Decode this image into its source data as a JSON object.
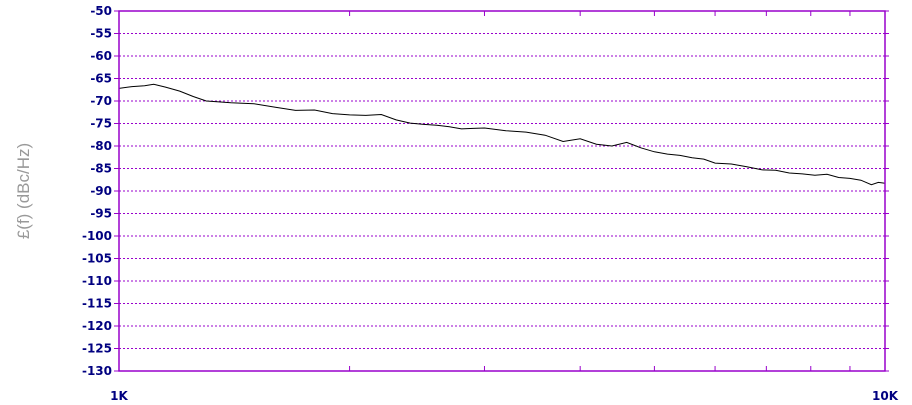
{
  "chart_data": {
    "type": "line",
    "title": "",
    "xlabel": "",
    "ylabel": "£(f) (dBc/Hz)",
    "x_scale": "log",
    "xlim": [
      1000,
      10000
    ],
    "ylim": [
      -130,
      -50
    ],
    "grid": true,
    "x_tick_labels": [
      {
        "value": 1000,
        "label": "1K"
      },
      {
        "value": 10000,
        "label": "10K"
      }
    ],
    "y_tick_labels": [
      {
        "value": -50,
        "label": "-50"
      },
      {
        "value": -55,
        "label": "-55"
      },
      {
        "value": -60,
        "label": "-60"
      },
      {
        "value": -65,
        "label": "-65"
      },
      {
        "value": -70,
        "label": "-70"
      },
      {
        "value": -75,
        "label": "-75"
      },
      {
        "value": -80,
        "label": "-80"
      },
      {
        "value": -85,
        "label": "-85"
      },
      {
        "value": -90,
        "label": "-90"
      },
      {
        "value": -95,
        "label": "-95"
      },
      {
        "value": -100,
        "label": "-100"
      },
      {
        "value": -105,
        "label": "-105"
      },
      {
        "value": -110,
        "label": "-110"
      },
      {
        "value": -115,
        "label": "-115"
      },
      {
        "value": -120,
        "label": "-120"
      },
      {
        "value": -125,
        "label": "-125"
      },
      {
        "value": -130,
        "label": "-130"
      }
    ],
    "series": [
      {
        "x": [
          1000,
          1040,
          1080,
          1110,
          1150,
          1200,
          1250,
          1300,
          1350,
          1400,
          1500,
          1600,
          1700,
          1800,
          1900,
          2000,
          2100,
          2200,
          2300,
          2400,
          2500,
          2600,
          2700,
          2800,
          2900,
          3000,
          3200,
          3400,
          3600,
          3800,
          4000,
          4200,
          4400,
          4600,
          4800,
          5000,
          5200,
          5400,
          5600,
          5800,
          6000,
          6300,
          6600,
          6900,
          7200,
          7500,
          7800,
          8100,
          8400,
          8700,
          9000,
          9300,
          9600,
          9800,
          10000
        ],
        "y": [
          -67.2,
          -66.8,
          -66.6,
          -66.3,
          -66.9,
          -67.8,
          -69.0,
          -70.0,
          -70.2,
          -70.4,
          -70.6,
          -71.4,
          -72.1,
          -72.0,
          -72.8,
          -73.1,
          -73.2,
          -73.0,
          -74.2,
          -74.9,
          -75.2,
          -75.4,
          -75.7,
          -76.2,
          -76.1,
          -76.0,
          -76.6,
          -76.9,
          -77.6,
          -79.0,
          -78.4,
          -79.6,
          -80.0,
          -79.2,
          -80.4,
          -81.3,
          -81.8,
          -82.1,
          -82.6,
          -82.9,
          -83.8,
          -84.0,
          -84.6,
          -85.3,
          -85.4,
          -86.0,
          -86.2,
          -86.5,
          -86.3,
          -87.0,
          -87.2,
          -87.6,
          -88.6,
          -88.1,
          -88.3
        ]
      }
    ],
    "colors": {
      "frame": "#9900cc",
      "grid": "#9900cc",
      "tick_label": "#000080",
      "line": "#000000",
      "ylabel": "#999999"
    }
  }
}
